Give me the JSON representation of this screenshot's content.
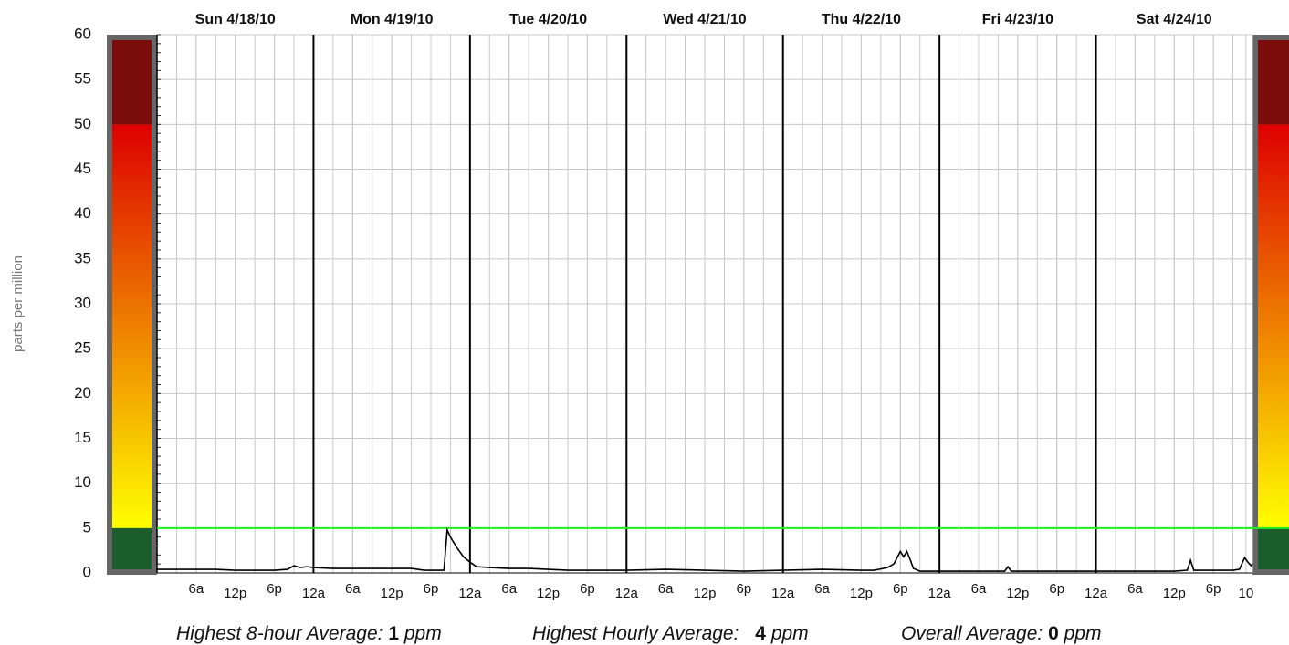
{
  "chart_data": {
    "type": "line",
    "y_label": "parts per million",
    "day_labels": [
      "Sun 4/18/10",
      "Mon 4/19/10",
      "Tue 4/20/10",
      "Wed 4/21/10",
      "Thu 4/22/10",
      "Fri 4/23/10",
      "Sat 4/24/10"
    ],
    "xlim": [
      0,
      168
    ],
    "ylim": [
      0,
      60
    ],
    "yticks": [
      0,
      5,
      10,
      15,
      20,
      25,
      30,
      35,
      40,
      45,
      50,
      55,
      60
    ],
    "xticks": [
      {
        "value": 6,
        "label": "6a"
      },
      {
        "value": 12,
        "label": "12p"
      },
      {
        "value": 18,
        "label": "6p"
      },
      {
        "value": 24,
        "label": "12a"
      },
      {
        "value": 30,
        "label": "6a"
      },
      {
        "value": 36,
        "label": "12p"
      },
      {
        "value": 42,
        "label": "6p"
      },
      {
        "value": 48,
        "label": "12a"
      },
      {
        "value": 54,
        "label": "6a"
      },
      {
        "value": 60,
        "label": "12p"
      },
      {
        "value": 66,
        "label": "6p"
      },
      {
        "value": 72,
        "label": "12a"
      },
      {
        "value": 78,
        "label": "6a"
      },
      {
        "value": 84,
        "label": "12p"
      },
      {
        "value": 90,
        "label": "6p"
      },
      {
        "value": 96,
        "label": "12a"
      },
      {
        "value": 102,
        "label": "6a"
      },
      {
        "value": 108,
        "label": "12p"
      },
      {
        "value": 114,
        "label": "6p"
      },
      {
        "value": 120,
        "label": "12a"
      },
      {
        "value": 126,
        "label": "6a"
      },
      {
        "value": 132,
        "label": "12p"
      },
      {
        "value": 138,
        "label": "6p"
      },
      {
        "value": 144,
        "label": "12a"
      },
      {
        "value": 150,
        "label": "6a"
      },
      {
        "value": 156,
        "label": "12p"
      },
      {
        "value": 162,
        "label": "6p"
      },
      {
        "value": 167,
        "label": "10"
      }
    ],
    "grid": true,
    "threshold": {
      "value": 5,
      "color": "#22ee22"
    },
    "color_bands": [
      {
        "from": 0,
        "to": 5,
        "colors": [
          "#1b5e2b",
          "#1b5e2b"
        ]
      },
      {
        "from": 5,
        "to": 50,
        "colors": [
          "#ffff00",
          "#dd0000"
        ]
      },
      {
        "from": 50,
        "to": 60,
        "colors": [
          "#7a0c0c",
          "#7a0c0c"
        ]
      }
    ],
    "series": [
      {
        "color": "#000000",
        "x": [
          0,
          3,
          6,
          9,
          12,
          15,
          18,
          20,
          21,
          22,
          23,
          24,
          27,
          30,
          33,
          36,
          39,
          40,
          41,
          42,
          43,
          44,
          44.5,
          45,
          46,
          47,
          48,
          49,
          51,
          54,
          57,
          60,
          63,
          66,
          69,
          72,
          78,
          84,
          90,
          96,
          102,
          108,
          110,
          112,
          113,
          114,
          114.5,
          115,
          115.5,
          116,
          117,
          120,
          126,
          130,
          130.5,
          131,
          132,
          138,
          144,
          150,
          156,
          158,
          158.5,
          159,
          162,
          165,
          166,
          166.8,
          167.3,
          167.8,
          168
        ],
        "values": [
          0.4,
          0.4,
          0.4,
          0.4,
          0.3,
          0.3,
          0.3,
          0.4,
          0.8,
          0.6,
          0.7,
          0.6,
          0.5,
          0.5,
          0.5,
          0.5,
          0.5,
          0.4,
          0.3,
          0.3,
          0.3,
          0.3,
          4.8,
          4.0,
          2.8,
          1.8,
          1.2,
          0.7,
          0.6,
          0.5,
          0.5,
          0.4,
          0.3,
          0.3,
          0.3,
          0.3,
          0.4,
          0.3,
          0.2,
          0.3,
          0.4,
          0.3,
          0.3,
          0.6,
          1.0,
          2.4,
          1.8,
          2.4,
          1.5,
          0.5,
          0.2,
          0.2,
          0.2,
          0.2,
          0.7,
          0.2,
          0.2,
          0.2,
          0.2,
          0.2,
          0.2,
          0.3,
          1.4,
          0.3,
          0.3,
          0.3,
          0.4,
          1.7,
          1.2,
          0.8,
          1.0
        ]
      }
    ],
    "stats": [
      {
        "label": "Highest 8-hour Average:",
        "value": 1,
        "unit": "ppm"
      },
      {
        "label": "Highest Hourly Average:",
        "value": 4,
        "unit": "ppm"
      },
      {
        "label": "Overall Average:",
        "value": 0,
        "unit": "ppm"
      }
    ]
  }
}
